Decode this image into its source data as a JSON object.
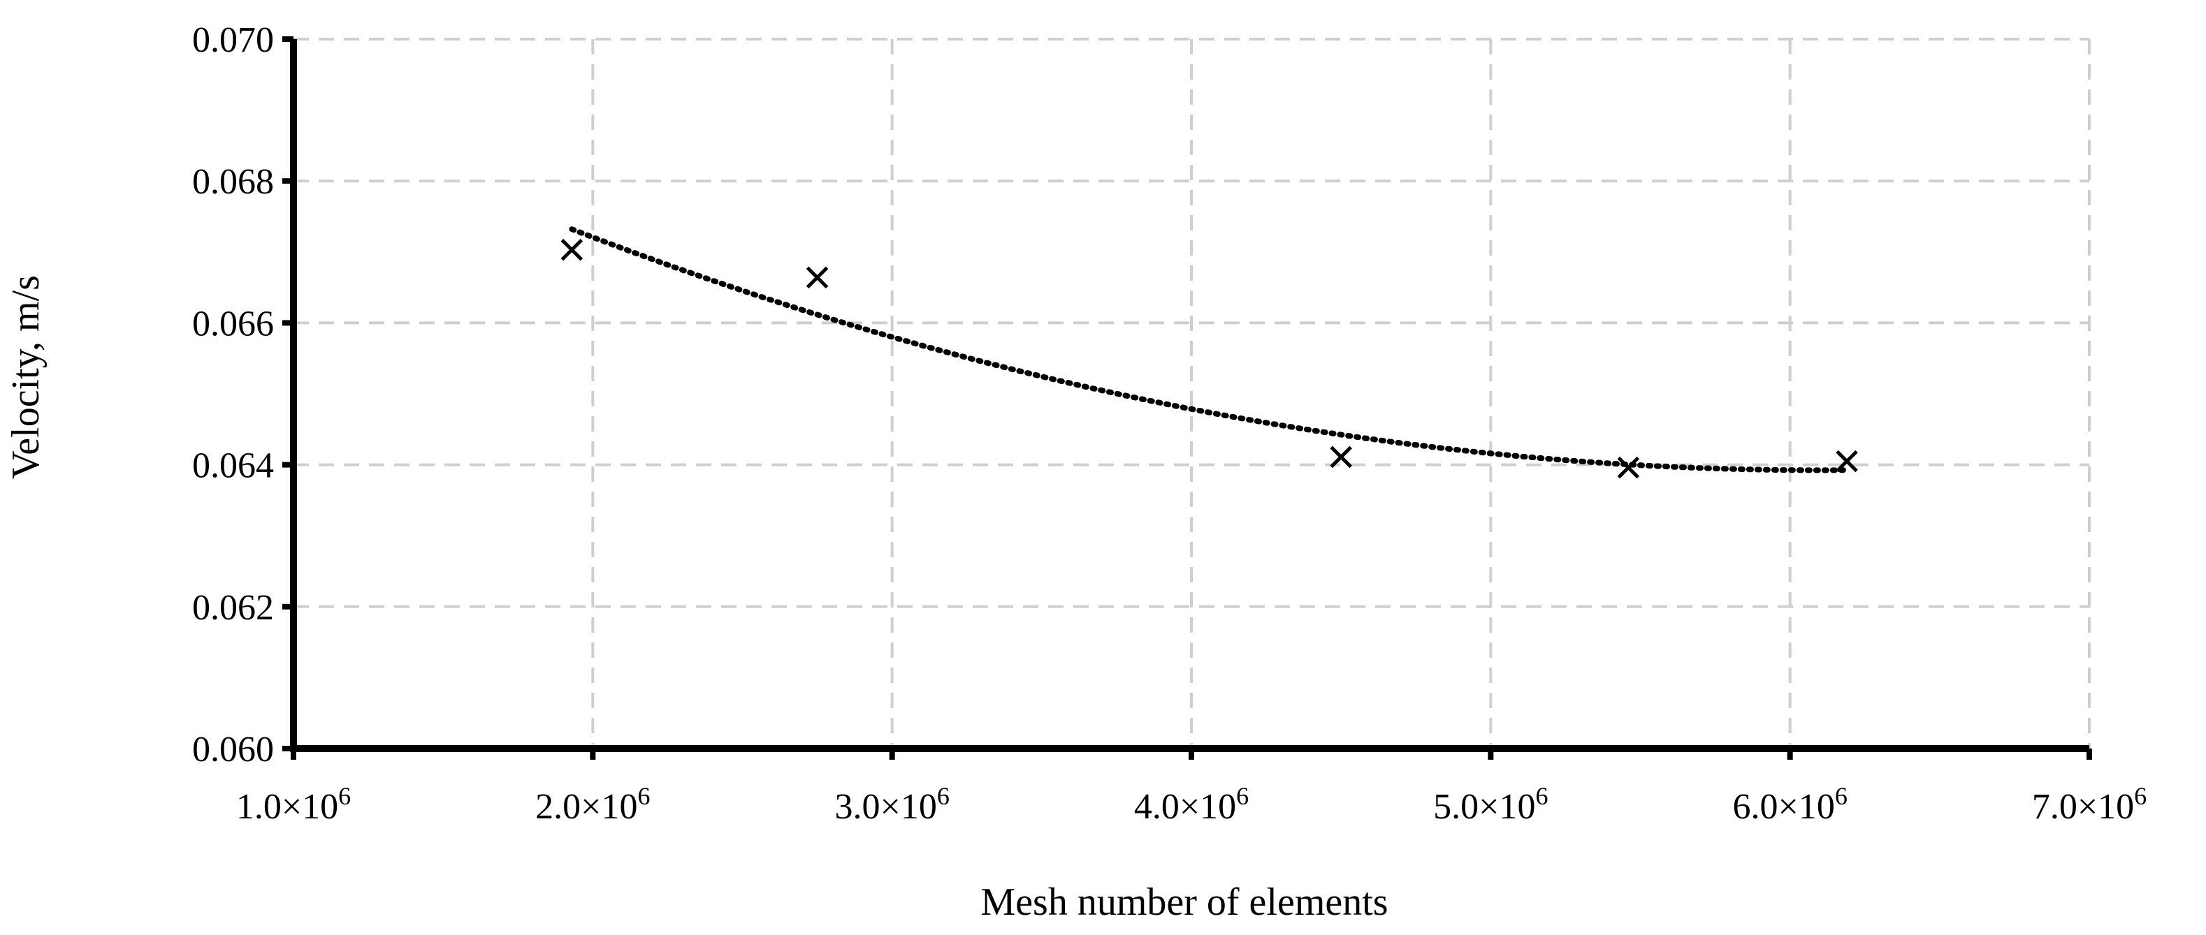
{
  "chart_data": {
    "type": "scatter",
    "xlabel": "Mesh number of elements",
    "ylabel": "Velocity, m/s",
    "xlim": [
      1000000,
      7000000
    ],
    "ylim": [
      0.06,
      0.07
    ],
    "x_ticks": [
      {
        "value": 1000000,
        "mantissa": "1.0×10",
        "exp": "6"
      },
      {
        "value": 2000000,
        "mantissa": "2.0×10",
        "exp": "6"
      },
      {
        "value": 3000000,
        "mantissa": "3.0×10",
        "exp": "6"
      },
      {
        "value": 4000000,
        "mantissa": "4.0×10",
        "exp": "6"
      },
      {
        "value": 5000000,
        "mantissa": "5.0×10",
        "exp": "6"
      },
      {
        "value": 6000000,
        "mantissa": "6.0×10",
        "exp": "6"
      },
      {
        "value": 7000000,
        "mantissa": "7.0×10",
        "exp": "6"
      }
    ],
    "y_ticks": [
      {
        "value": 0.06,
        "label": "0.060"
      },
      {
        "value": 0.062,
        "label": "0.062"
      },
      {
        "value": 0.064,
        "label": "0.064"
      },
      {
        "value": 0.066,
        "label": "0.066"
      },
      {
        "value": 0.068,
        "label": "0.068"
      },
      {
        "value": 0.07,
        "label": "0.070"
      }
    ],
    "grid": true,
    "series": [
      {
        "marker": "x",
        "color": "#000000",
        "x": [
          1930000,
          2750000,
          4500000,
          5460000,
          6190000
        ],
        "y": [
          0.06703,
          0.06664,
          0.06411,
          0.06396,
          0.06405
        ]
      }
    ],
    "trendline": {
      "type": "polynomial",
      "order": 2,
      "style": "dotted",
      "color": "#000000",
      "x_range": [
        1930000,
        6190000
      ]
    }
  }
}
